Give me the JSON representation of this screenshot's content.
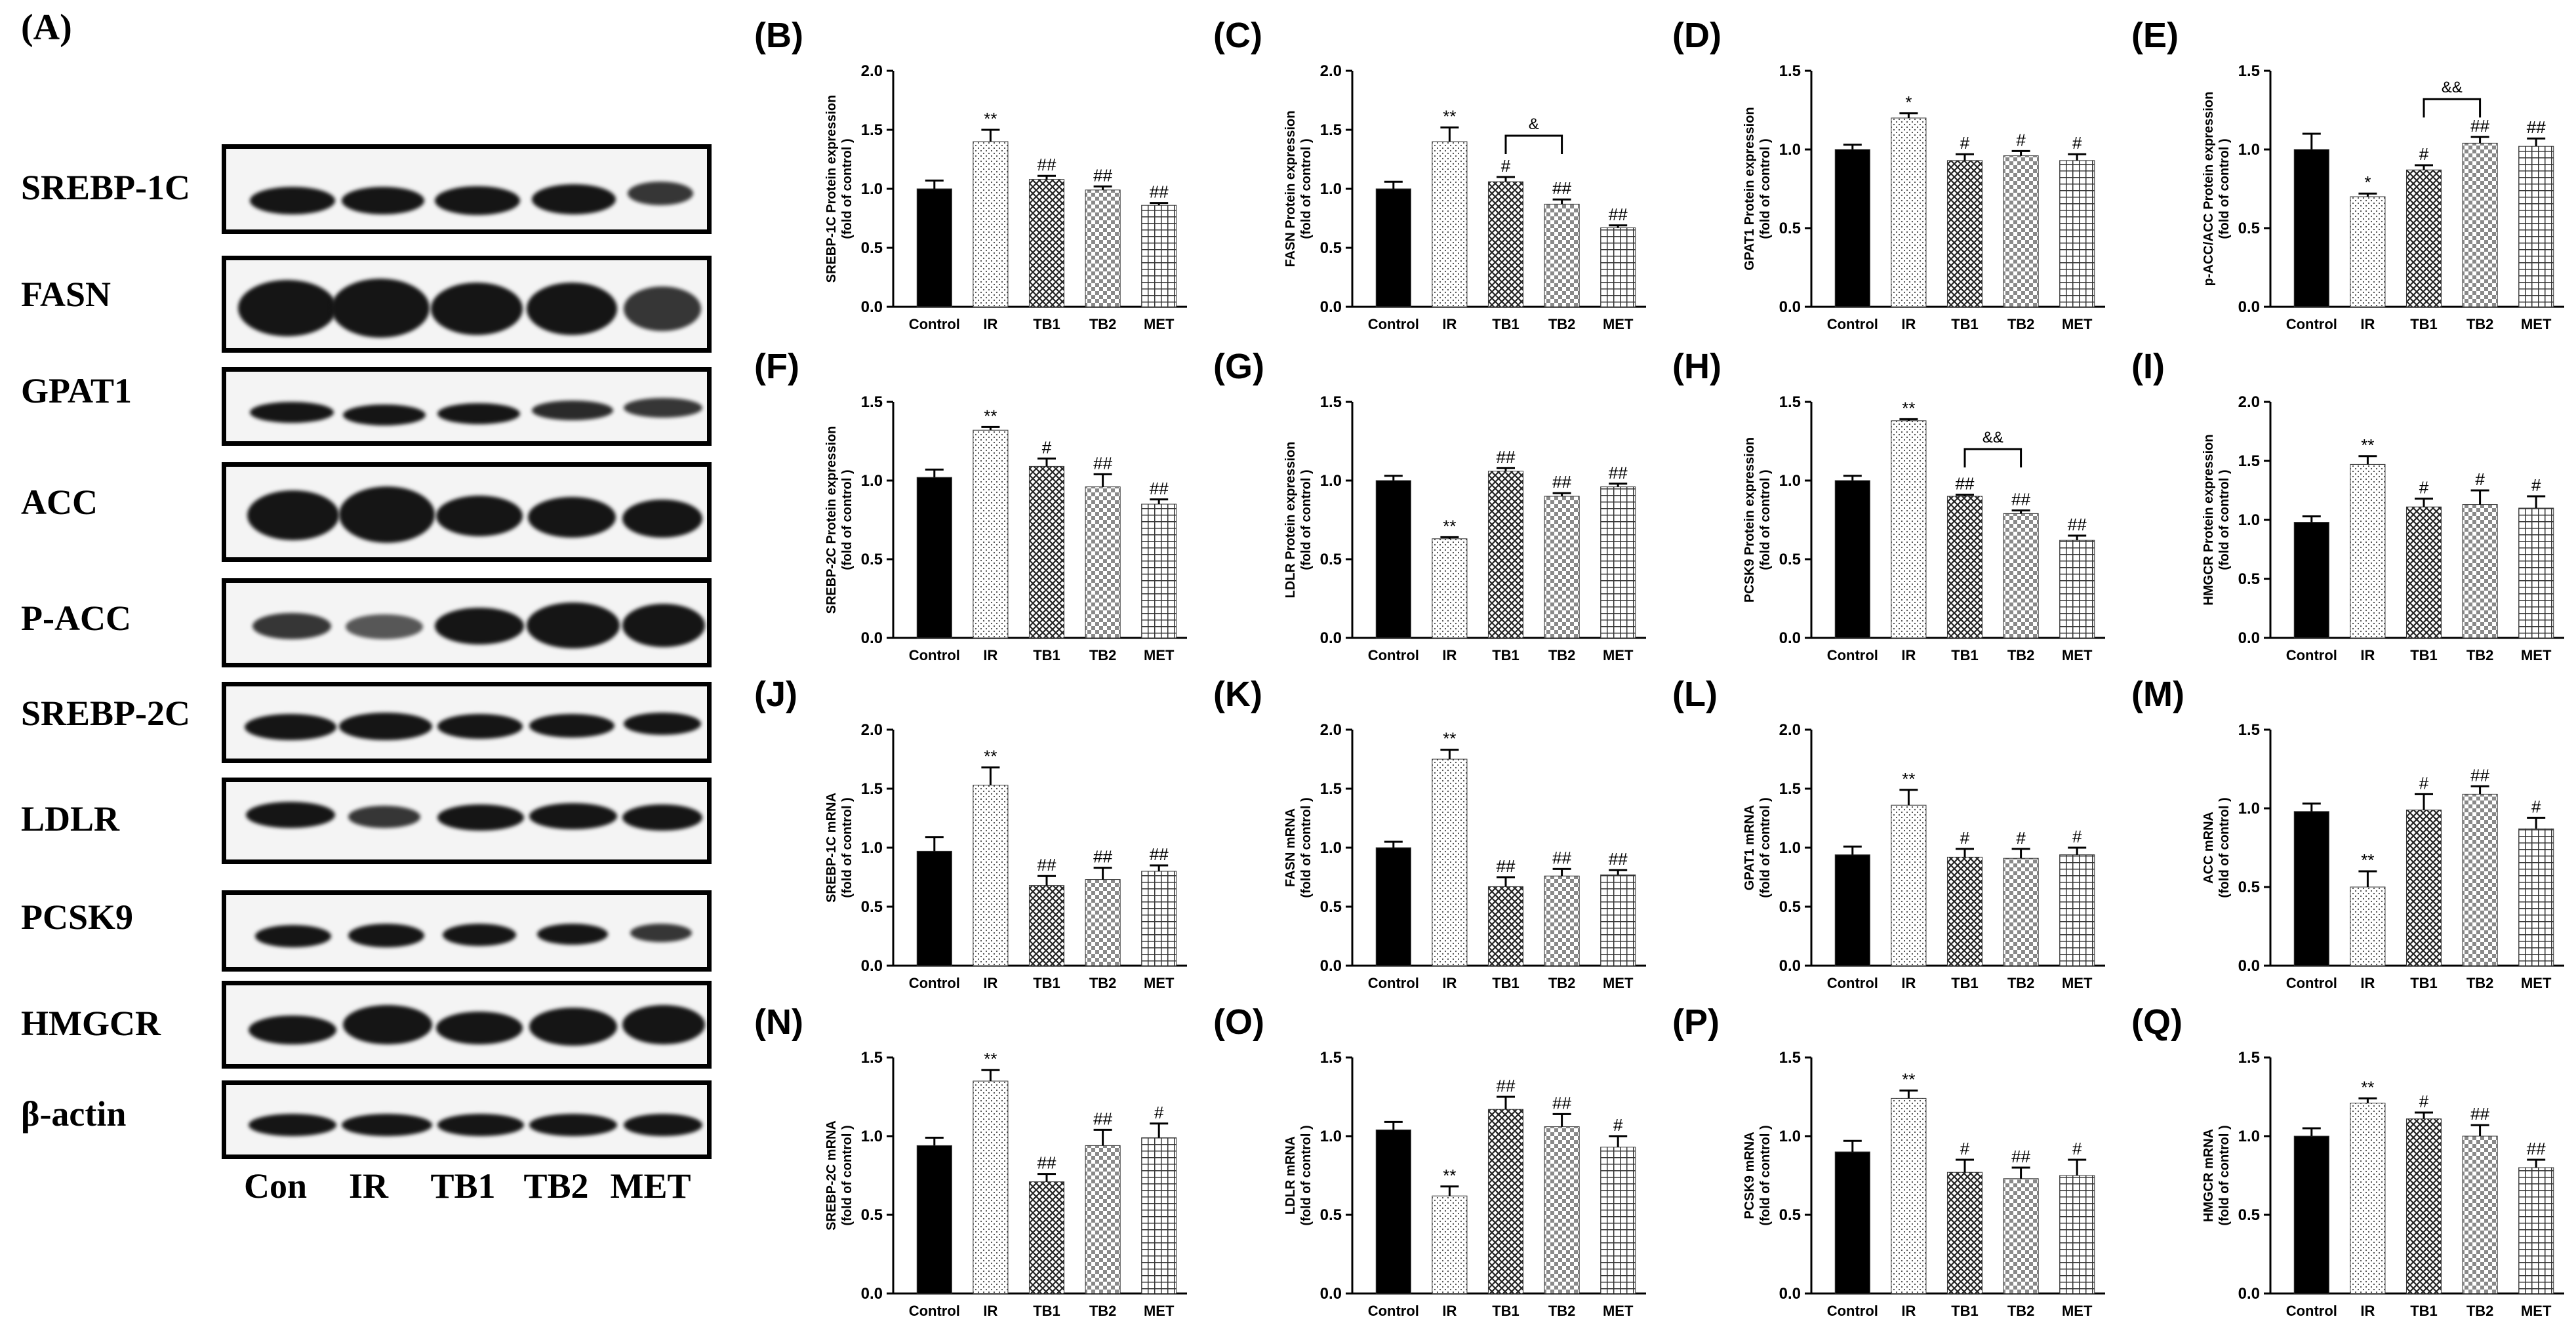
{
  "panel_a": {
    "label": "(A)",
    "proteins": [
      "SREBP-1C",
      "FASN",
      "GPAT1",
      "ACC",
      "P-ACC",
      "SREBP-2C",
      "LDLR",
      "PCSK9",
      "HMGCR",
      "β-actin"
    ],
    "lanes": [
      "Con",
      "IR",
      "TB1",
      "TB2",
      "MET"
    ]
  },
  "colors": {
    "control": "#000000",
    "axis": "#000000",
    "pattern": "#222222"
  },
  "chart_data": [
    {
      "id": "B",
      "label": "(B)",
      "type": "bar",
      "ylabel": [
        "SREBP-1C Protein expression",
        "(fold of control )"
      ],
      "categories": [
        "Control",
        "IR",
        "TB1",
        "TB2",
        "MET"
      ],
      "values": [
        1.0,
        1.4,
        1.08,
        0.99,
        0.86
      ],
      "errors": [
        0.07,
        0.1,
        0.03,
        0.03,
        0.02
      ],
      "marks": [
        "",
        "**",
        "##",
        "##",
        "##"
      ],
      "ylim": [
        0,
        2.0
      ],
      "yticks": [
        "0.0",
        "0.5",
        "1.0",
        "1.5",
        "2.0"
      ],
      "bracket": null
    },
    {
      "id": "C",
      "label": "(C)",
      "type": "bar",
      "ylabel": [
        "FASN Protein expression",
        "(fold of control )"
      ],
      "categories": [
        "Control",
        "IR",
        "TB1",
        "TB2",
        "MET"
      ],
      "values": [
        1.0,
        1.4,
        1.06,
        0.87,
        0.67
      ],
      "errors": [
        0.06,
        0.12,
        0.04,
        0.04,
        0.02
      ],
      "marks": [
        "",
        "**",
        "#",
        "##",
        "##"
      ],
      "ylim": [
        0,
        2.0
      ],
      "yticks": [
        "0.0",
        "0.5",
        "1.0",
        "1.5",
        "2.0"
      ],
      "bracket": {
        "from": 2,
        "to": 3,
        "y": 1.45,
        "text": "&"
      }
    },
    {
      "id": "D",
      "label": "(D)",
      "type": "bar",
      "ylabel": [
        "GPAT1 Protein expression",
        "(fold of control )"
      ],
      "categories": [
        "Control",
        "IR",
        "TB1",
        "TB2",
        "MET"
      ],
      "values": [
        1.0,
        1.2,
        0.93,
        0.96,
        0.93
      ],
      "errors": [
        0.03,
        0.03,
        0.04,
        0.03,
        0.04
      ],
      "marks": [
        "",
        "*",
        "#",
        "#",
        "#"
      ],
      "ylim": [
        0,
        1.5
      ],
      "yticks": [
        "0.0",
        "0.5",
        "1.0",
        "1.5"
      ],
      "bracket": null
    },
    {
      "id": "E",
      "label": "(E)",
      "type": "bar",
      "ylabel": [
        "p-ACC/ACC Protein expression",
        "(fold of control )"
      ],
      "categories": [
        "Control",
        "IR",
        "TB1",
        "TB2",
        "MET"
      ],
      "values": [
        1.0,
        0.7,
        0.87,
        1.04,
        1.02
      ],
      "errors": [
        0.1,
        0.02,
        0.03,
        0.04,
        0.05
      ],
      "marks": [
        "",
        "*",
        "#",
        "##",
        "##"
      ],
      "ylim": [
        0,
        1.5
      ],
      "yticks": [
        "0.0",
        "0.5",
        "1.0",
        "1.5"
      ],
      "bracket": {
        "from": 2,
        "to": 3,
        "y": 1.32,
        "text": "&&"
      }
    },
    {
      "id": "F",
      "label": "(F)",
      "type": "bar",
      "ylabel": [
        "SREBP-2C Protein expression",
        "(fold of control )"
      ],
      "categories": [
        "Control",
        "IR",
        "TB1",
        "TB2",
        "MET"
      ],
      "values": [
        1.02,
        1.32,
        1.09,
        0.96,
        0.85
      ],
      "errors": [
        0.05,
        0.02,
        0.05,
        0.08,
        0.03
      ],
      "marks": [
        "",
        "**",
        "#",
        "##",
        "##"
      ],
      "ylim": [
        0,
        1.5
      ],
      "yticks": [
        "0.0",
        "0.5",
        "1.0",
        "1.5"
      ],
      "bracket": null
    },
    {
      "id": "G",
      "label": "(G)",
      "type": "bar",
      "ylabel": [
        "LDLR Protein expression",
        "(fold of control )"
      ],
      "categories": [
        "Control",
        "IR",
        "TB1",
        "TB2",
        "MET"
      ],
      "values": [
        1.0,
        0.63,
        1.06,
        0.9,
        0.96
      ],
      "errors": [
        0.03,
        0.01,
        0.02,
        0.02,
        0.02
      ],
      "marks": [
        "",
        "**",
        "##",
        "##",
        "##"
      ],
      "ylim": [
        0,
        1.5
      ],
      "yticks": [
        "0.0",
        "0.5",
        "1.0",
        "1.5"
      ],
      "bracket": null
    },
    {
      "id": "H",
      "label": "(H)",
      "type": "bar",
      "ylabel": [
        "PCSK9 Protein expression",
        "(fold of control )"
      ],
      "categories": [
        "Control",
        "IR",
        "TB1",
        "TB2",
        "MET"
      ],
      "values": [
        1.0,
        1.38,
        0.9,
        0.79,
        0.62
      ],
      "errors": [
        0.03,
        0.01,
        0.01,
        0.02,
        0.03
      ],
      "marks": [
        "",
        "**",
        "##",
        "##",
        "##"
      ],
      "ylim": [
        0,
        1.5
      ],
      "yticks": [
        "0.0",
        "0.5",
        "1.0",
        "1.5"
      ],
      "bracket": {
        "from": 2,
        "to": 3,
        "y": 1.2,
        "text": "&&"
      }
    },
    {
      "id": "I",
      "label": "(I)",
      "type": "bar",
      "ylabel": [
        "HMGCR Protein expression",
        "(fold of control )"
      ],
      "categories": [
        "Control",
        "IR",
        "TB1",
        "TB2",
        "MET"
      ],
      "values": [
        0.98,
        1.47,
        1.11,
        1.13,
        1.1
      ],
      "errors": [
        0.05,
        0.07,
        0.07,
        0.12,
        0.1
      ],
      "marks": [
        "",
        "**",
        "#",
        "#",
        "#"
      ],
      "ylim": [
        0,
        2.0
      ],
      "yticks": [
        "0.0",
        "0.5",
        "1.0",
        "1.5",
        "2.0"
      ],
      "bracket": null
    },
    {
      "id": "J",
      "label": "(J)",
      "type": "bar",
      "ylabel": [
        "SREBP-1C mRNA",
        "(fold of control )"
      ],
      "categories": [
        "Control",
        "IR",
        "TB1",
        "TB2",
        "MET"
      ],
      "values": [
        0.97,
        1.53,
        0.68,
        0.73,
        0.8
      ],
      "errors": [
        0.12,
        0.15,
        0.08,
        0.1,
        0.05
      ],
      "marks": [
        "",
        "**",
        "##",
        "##",
        "##"
      ],
      "ylim": [
        0,
        2.0
      ],
      "yticks": [
        "0.0",
        "0.5",
        "1.0",
        "1.5",
        "2.0"
      ],
      "bracket": null
    },
    {
      "id": "K",
      "label": "(K)",
      "type": "bar",
      "ylabel": [
        "FASN mRNA",
        "(fold of control )"
      ],
      "categories": [
        "Control",
        "IR",
        "TB1",
        "TB2",
        "MET"
      ],
      "values": [
        1.0,
        1.75,
        0.67,
        0.76,
        0.77
      ],
      "errors": [
        0.05,
        0.08,
        0.08,
        0.06,
        0.04
      ],
      "marks": [
        "",
        "**",
        "##",
        "##",
        "##"
      ],
      "ylim": [
        0,
        2.0
      ],
      "yticks": [
        "0.0",
        "0.5",
        "1.0",
        "1.5",
        "2.0"
      ],
      "bracket": null
    },
    {
      "id": "L",
      "label": "(L)",
      "type": "bar",
      "ylabel": [
        "GPAT1 mRNA",
        "(fold of control )"
      ],
      "categories": [
        "Control",
        "IR",
        "TB1",
        "TB2",
        "MET"
      ],
      "values": [
        0.94,
        1.36,
        0.92,
        0.91,
        0.94
      ],
      "errors": [
        0.07,
        0.13,
        0.07,
        0.08,
        0.06
      ],
      "marks": [
        "",
        "**",
        "#",
        "#",
        "#"
      ],
      "ylim": [
        0,
        2.0
      ],
      "yticks": [
        "0.0",
        "0.5",
        "1.0",
        "1.5",
        "2.0"
      ],
      "bracket": null
    },
    {
      "id": "M",
      "label": "(M)",
      "type": "bar",
      "ylabel": [
        "ACC mRNA",
        "(fold of control )"
      ],
      "categories": [
        "Control",
        "IR",
        "TB1",
        "TB2",
        "MET"
      ],
      "values": [
        0.98,
        0.5,
        0.99,
        1.09,
        0.87
      ],
      "errors": [
        0.05,
        0.1,
        0.1,
        0.05,
        0.07
      ],
      "marks": [
        "",
        "**",
        "#",
        "##",
        "#"
      ],
      "ylim": [
        0,
        1.5
      ],
      "yticks": [
        "0.0",
        "0.5",
        "1.0",
        "1.5"
      ],
      "bracket": null
    },
    {
      "id": "N",
      "label": "(N)",
      "type": "bar",
      "ylabel": [
        "SREBP-2C  mRNA",
        "(fold of control )"
      ],
      "categories": [
        "Control",
        "IR",
        "TB1",
        "TB2",
        "MET"
      ],
      "values": [
        0.94,
        1.35,
        0.71,
        0.94,
        0.99
      ],
      "errors": [
        0.05,
        0.07,
        0.05,
        0.1,
        0.09
      ],
      "marks": [
        "",
        "**",
        "##",
        "##",
        "#"
      ],
      "ylim": [
        0,
        1.5
      ],
      "yticks": [
        "0.0",
        "0.5",
        "1.0",
        "1.5"
      ],
      "bracket": null
    },
    {
      "id": "O",
      "label": "(O)",
      "type": "bar",
      "ylabel": [
        "LDLR mRNA",
        "(fold of control )"
      ],
      "categories": [
        "Control",
        "IR",
        "TB1",
        "TB2",
        "MET"
      ],
      "values": [
        1.04,
        0.62,
        1.17,
        1.06,
        0.93
      ],
      "errors": [
        0.05,
        0.06,
        0.08,
        0.08,
        0.07
      ],
      "marks": [
        "",
        "**",
        "##",
        "##",
        "#"
      ],
      "ylim": [
        0,
        1.5
      ],
      "yticks": [
        "0.0",
        "0.5",
        "1.0",
        "1.5"
      ],
      "bracket": null
    },
    {
      "id": "P",
      "label": "(P)",
      "type": "bar",
      "ylabel": [
        "PCSK9 mRNA",
        "(fold of control )"
      ],
      "categories": [
        "Control",
        "IR",
        "TB1",
        "TB2",
        "MET"
      ],
      "values": [
        0.9,
        1.24,
        0.77,
        0.73,
        0.75
      ],
      "errors": [
        0.07,
        0.05,
        0.08,
        0.07,
        0.1
      ],
      "marks": [
        "",
        "**",
        "#",
        "##",
        "#"
      ],
      "ylim": [
        0,
        1.5
      ],
      "yticks": [
        "0.0",
        "0.5",
        "1.0",
        "1.5"
      ],
      "bracket": null
    },
    {
      "id": "Q",
      "label": "(Q)",
      "type": "bar",
      "ylabel": [
        "HMGCR mRNA",
        "(fold of control )"
      ],
      "categories": [
        "Control",
        "IR",
        "TB1",
        "TB2",
        "MET"
      ],
      "values": [
        1.0,
        1.21,
        1.11,
        1.0,
        0.8
      ],
      "errors": [
        0.05,
        0.03,
        0.04,
        0.07,
        0.05
      ],
      "marks": [
        "",
        "**",
        "#",
        "##",
        "##"
      ],
      "ylim": [
        0,
        1.5
      ],
      "yticks": [
        "0.0",
        "0.5",
        "1.0",
        "1.5"
      ],
      "bracket": null
    }
  ]
}
